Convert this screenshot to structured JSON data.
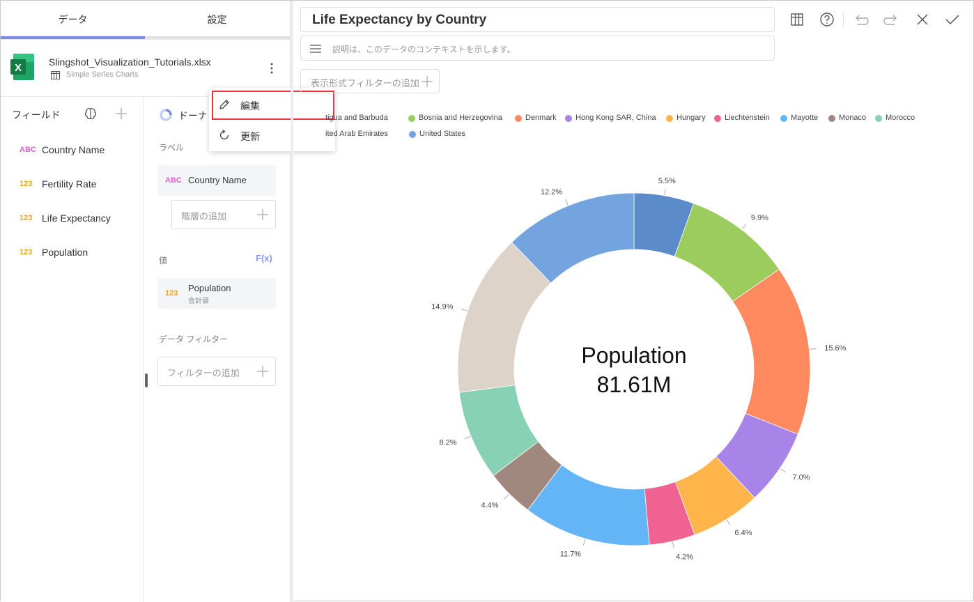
{
  "tabs": {
    "data": "データ",
    "settings": "設定"
  },
  "source": {
    "file_name": "Slingshot_Visualization_Tutorials.xlsx",
    "sheet_name": "Simple Series Charts"
  },
  "fields": {
    "title": "フィールド",
    "items": [
      {
        "type": "ABC",
        "name": "Country Name"
      },
      {
        "type": "123",
        "name": "Fertility Rate"
      },
      {
        "type": "123",
        "name": "Life Expectancy"
      },
      {
        "type": "123",
        "name": "Population"
      }
    ]
  },
  "config": {
    "chart_type_label": "ドーナツ",
    "label_section": "ラベル",
    "label_field": {
      "type": "ABC",
      "name": "Country Name"
    },
    "add_hierarchy": "階層の追加",
    "value_section": "値",
    "fx_label": "F(x)",
    "value_field": {
      "type": "123",
      "name": "Population",
      "aggregation": "合計値"
    },
    "data_filter_section": "データ フィルター",
    "add_filter": "フィルターの追加"
  },
  "menu": {
    "edit": "編集",
    "refresh": "更新"
  },
  "visualization": {
    "title": "Life Expectancy by Country",
    "description_placeholder": "説明は、このデータのコンテキストを示します。",
    "add_view_filter": "表示形式フィルターの追加"
  },
  "legend": [
    {
      "name": "tigua and Barbuda",
      "color": "#5b8bc9"
    },
    {
      "name": "Bosnia and Herzegovina",
      "color": "#9ccb5e"
    },
    {
      "name": "Denmark",
      "color": "#ff8a60"
    },
    {
      "name": "Hong Kong SAR, China",
      "color": "#a883e8"
    },
    {
      "name": "Hungary",
      "color": "#ffb54c"
    },
    {
      "name": "Liechtenstein",
      "color": "#f06292"
    },
    {
      "name": "Mayotte",
      "color": "#64b5f6"
    },
    {
      "name": "Monaco",
      "color": "#a1887f"
    },
    {
      "name": "Morocco",
      "color": "#88d1b4"
    },
    {
      "name": "ited Arab Emirates",
      "color": "#ddd3c8"
    },
    {
      "name": "United States",
      "color": "#73a4e0"
    }
  ],
  "chart_data": {
    "type": "pie",
    "donut": true,
    "center_label": "Population",
    "center_value": "81.61M",
    "slices": [
      {
        "name": "Antigua and Barbuda",
        "value": 5.5,
        "label": "5.5%",
        "color": "#5b8bc9"
      },
      {
        "name": "Bosnia and Herzegovina",
        "value": 9.9,
        "label": "9.9%",
        "color": "#9ccb5e"
      },
      {
        "name": "Denmark",
        "value": 15.6,
        "label": "15.6%",
        "color": "#ff8a60"
      },
      {
        "name": "Hong Kong SAR, China",
        "value": 7.0,
        "label": "7.0%",
        "color": "#a883e8"
      },
      {
        "name": "Hungary",
        "value": 6.4,
        "label": "6.4%",
        "color": "#ffb54c"
      },
      {
        "name": "Liechtenstein",
        "value": 4.2,
        "label": "4.2%",
        "color": "#f06292"
      },
      {
        "name": "Mayotte",
        "value": 11.7,
        "label": "11.7%",
        "color": "#64b5f6"
      },
      {
        "name": "Monaco",
        "value": 4.4,
        "label": "4.4%",
        "color": "#a1887f"
      },
      {
        "name": "Morocco",
        "value": 8.2,
        "label": "8.2%",
        "color": "#88d1b4"
      },
      {
        "name": "United Arab Emirates",
        "value": 14.9,
        "label": "14.9%",
        "color": "#ddd3c8"
      },
      {
        "name": "United States",
        "value": 12.2,
        "label": "12.2%",
        "color": "#73a4e0"
      }
    ]
  }
}
